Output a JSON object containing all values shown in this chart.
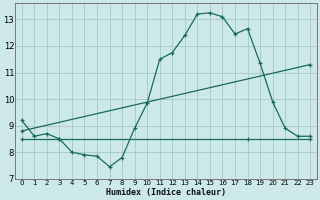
{
  "xlabel": "Humidex (Indice chaleur)",
  "bg_color": "#cce8e8",
  "grid_color": "#aacccc",
  "line_color": "#1a6b5a",
  "xlim": [
    -0.5,
    23.5
  ],
  "ylim": [
    7,
    13.6
  ],
  "xticks": [
    0,
    1,
    2,
    3,
    4,
    5,
    6,
    7,
    8,
    9,
    10,
    11,
    12,
    13,
    14,
    15,
    16,
    17,
    18,
    19,
    20,
    21,
    22,
    23
  ],
  "yticks": [
    7,
    8,
    9,
    10,
    11,
    12,
    13
  ],
  "series1_x": [
    0,
    1,
    2,
    3,
    4,
    5,
    6,
    7,
    8,
    9,
    10,
    11,
    12,
    13,
    14,
    15,
    16,
    17,
    18,
    19,
    20,
    21,
    22,
    23
  ],
  "series1_y": [
    9.2,
    8.6,
    8.7,
    8.5,
    8.0,
    7.9,
    7.85,
    7.45,
    7.8,
    8.9,
    9.85,
    11.5,
    11.75,
    12.4,
    13.2,
    13.25,
    13.1,
    12.45,
    12.65,
    11.35,
    9.9,
    8.9,
    8.6,
    8.6
  ],
  "series2_x": [
    0,
    3,
    18,
    23
  ],
  "series2_y": [
    8.5,
    8.5,
    8.5,
    8.5
  ],
  "series3_x": [
    0,
    23
  ],
  "series3_y": [
    8.8,
    11.3
  ]
}
